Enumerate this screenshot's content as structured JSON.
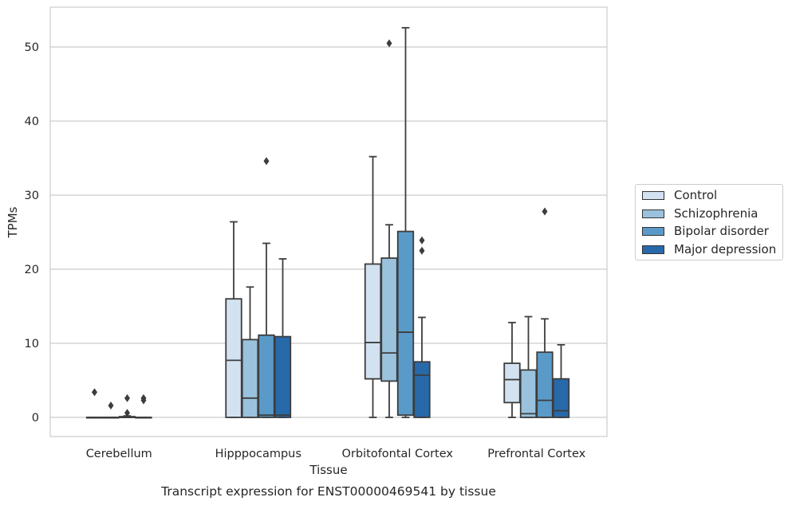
{
  "chart_data": {
    "type": "box",
    "title": "Transcript expression for ENST00000469541 by tissue",
    "xlabel": "Tissue",
    "ylabel": "TPMs",
    "categories": [
      "Cerebellum",
      "Hipppocampus",
      "Orbitofontal Cortex",
      "Prefrontal Cortex"
    ],
    "yticks": [
      0,
      10,
      20,
      30,
      40,
      50
    ],
    "ylim": [
      -2.5,
      55.5
    ],
    "grid": true,
    "legend_position": "right",
    "series": [
      {
        "name": "Control",
        "color": "#d2e2f1",
        "boxes": [
          {
            "q1": 0,
            "median": 0,
            "q3": 0,
            "low": 0,
            "high": 0,
            "outliers": [
              3.4
            ]
          },
          {
            "q1": 0,
            "median": 7.7,
            "q3": 16.0,
            "low": 0,
            "high": 26.4,
            "outliers": []
          },
          {
            "q1": 5.2,
            "median": 10.1,
            "q3": 20.7,
            "low": 0,
            "high": 35.2,
            "outliers": []
          },
          {
            "q1": 2.0,
            "median": 5.1,
            "q3": 7.3,
            "low": 0,
            "high": 12.8,
            "outliers": []
          }
        ]
      },
      {
        "name": "Schizophrenia",
        "color": "#9ac2dd",
        "boxes": [
          {
            "q1": 0,
            "median": 0,
            "q3": 0,
            "low": 0,
            "high": 0,
            "outliers": [
              1.6
            ]
          },
          {
            "q1": 0,
            "median": 2.6,
            "q3": 10.5,
            "low": 0,
            "high": 17.6,
            "outliers": []
          },
          {
            "q1": 4.9,
            "median": 8.7,
            "q3": 21.5,
            "low": 0,
            "high": 26.0,
            "outliers": [
              50.5
            ]
          },
          {
            "q1": 0,
            "median": 0.5,
            "q3": 6.4,
            "low": 0,
            "high": 13.6,
            "outliers": []
          }
        ]
      },
      {
        "name": "Bipolar disorder",
        "color": "#5a9ac8",
        "boxes": [
          {
            "q1": 0,
            "median": 0,
            "q3": 0.1,
            "low": 0,
            "high": 0.2,
            "outliers": [
              2.6,
              0.6
            ]
          },
          {
            "q1": 0,
            "median": 0.3,
            "q3": 11.1,
            "low": 0,
            "high": 23.5,
            "outliers": [
              34.6
            ]
          },
          {
            "q1": 0.3,
            "median": 11.5,
            "q3": 25.1,
            "low": 0,
            "high": 52.6,
            "outliers": []
          },
          {
            "q1": 0,
            "median": 2.3,
            "q3": 8.8,
            "low": 0,
            "high": 13.3,
            "outliers": [
              27.8
            ]
          }
        ]
      },
      {
        "name": "Major depression",
        "color": "#2869a9",
        "boxes": [
          {
            "q1": 0,
            "median": 0,
            "q3": 0,
            "low": 0,
            "high": 0,
            "outliers": [
              2.6,
              2.3
            ]
          },
          {
            "q1": 0,
            "median": 0.3,
            "q3": 10.9,
            "low": 0,
            "high": 21.4,
            "outliers": []
          },
          {
            "q1": 0,
            "median": 5.7,
            "q3": 7.5,
            "low": 0,
            "high": 13.5,
            "outliers": [
              23.9,
              22.5
            ]
          },
          {
            "q1": 0,
            "median": 0.9,
            "q3": 5.2,
            "low": 0,
            "high": 9.8,
            "outliers": []
          }
        ]
      }
    ]
  }
}
